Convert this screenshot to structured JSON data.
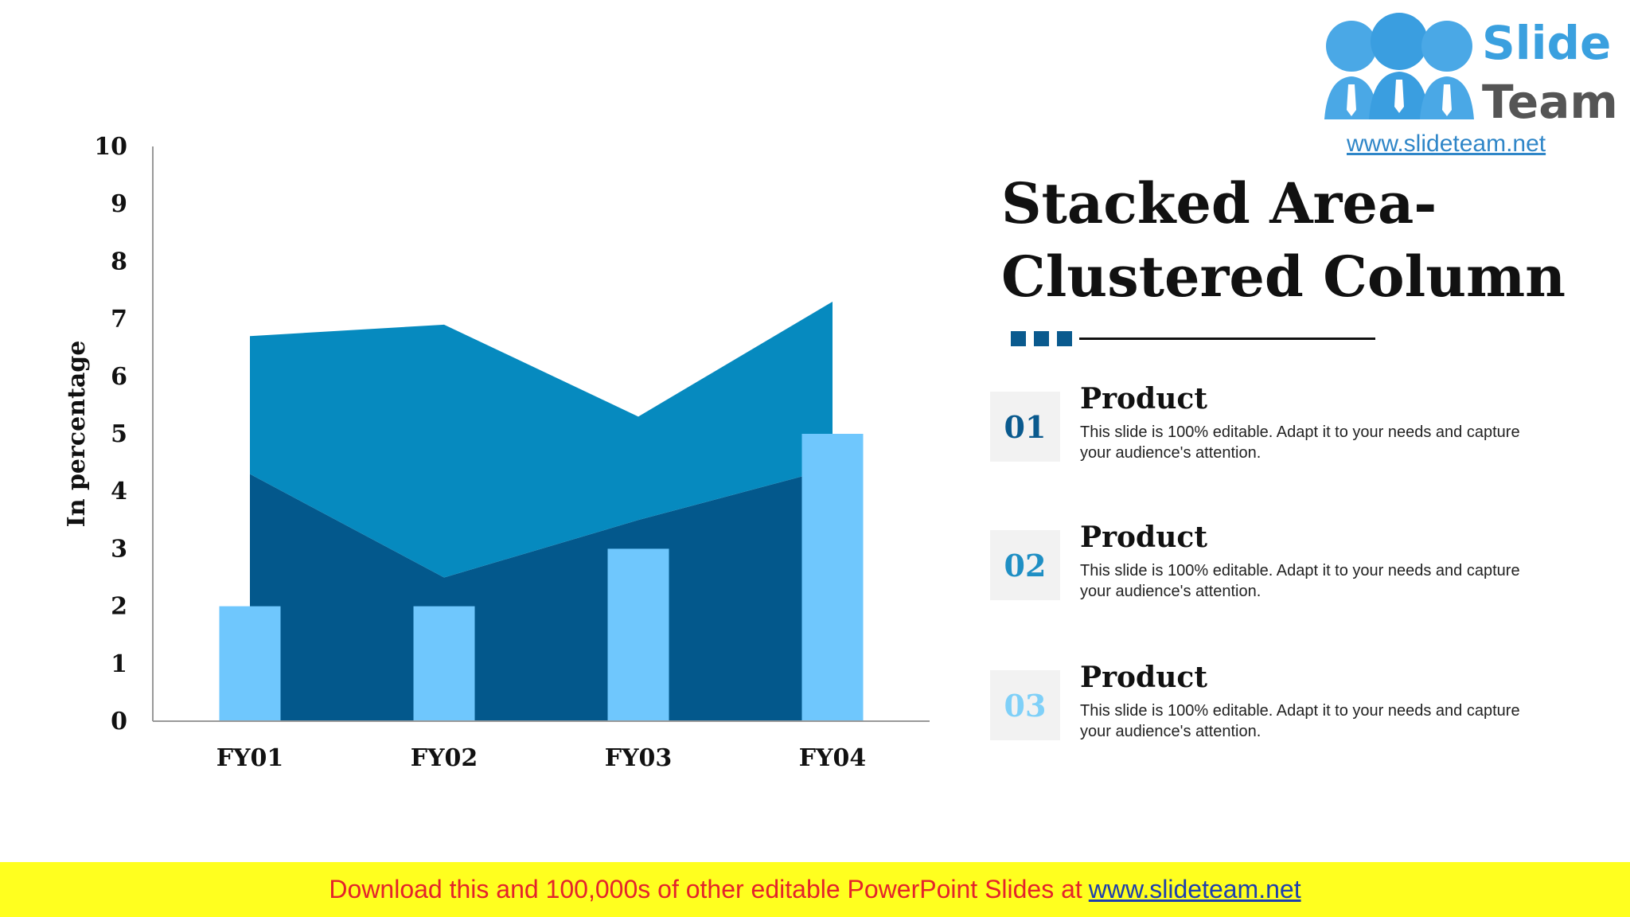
{
  "chart_data": {
    "type": "area+bar",
    "categories": [
      "FY01",
      "FY02",
      "FY03",
      "FY04"
    ],
    "ylabel": "In percentage",
    "ylim": [
      0,
      10
    ],
    "yticks": [
      0,
      1,
      2,
      3,
      4,
      5,
      6,
      7,
      8,
      9,
      10
    ],
    "area_series": [
      {
        "values": [
          4.3,
          2.5,
          3.5,
          4.4
        ],
        "color": "#03588c"
      },
      {
        "values": [
          2.4,
          4.4,
          1.8,
          2.9
        ],
        "color": "#068abf"
      }
    ],
    "bar_series": [
      {
        "values": [
          2,
          2,
          3,
          5
        ],
        "color": "#6fc7fd"
      }
    ],
    "grid": false
  },
  "title": {
    "line1": "Stacked Area-",
    "line2": "Clustered Column"
  },
  "colors": {
    "accent": "#0a5a8e",
    "num1": "#0a5a8e",
    "num2": "#1f8fc4",
    "num3": "#7fd0f8"
  },
  "items": [
    {
      "num": "01",
      "heading": "Product",
      "text": "This slide is 100% editable. Adapt it to your needs and capture your audience's attention."
    },
    {
      "num": "02",
      "heading": "Product",
      "text": "This slide is 100% editable. Adapt it to your needs and capture your audience's attention."
    },
    {
      "num": "03",
      "heading": "Product",
      "text": "This slide is 100% editable. Adapt it to your needs and capture your audience's attention."
    }
  ],
  "logo": {
    "word1": "Slide",
    "word2": "Team",
    "url": "www.slideteam.net"
  },
  "banner": {
    "text": "Download this and 100,000s of other editable PowerPoint Slides at",
    "link": "www.slideteam.net"
  }
}
